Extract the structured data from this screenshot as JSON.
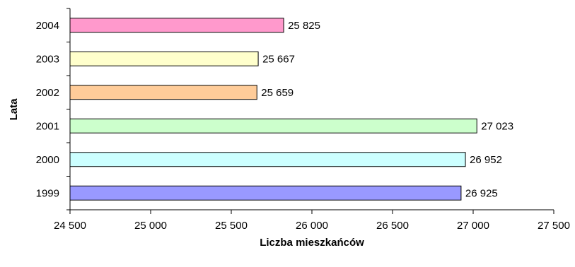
{
  "chart_data": {
    "type": "bar",
    "orientation": "horizontal",
    "title": "",
    "xlabel": "Liczba mieszkańców",
    "ylabel": "Lata",
    "xlim": [
      24500,
      27500
    ],
    "xticks": [
      24500,
      25000,
      25500,
      26000,
      26500,
      27000,
      27500
    ],
    "xtick_labels": [
      "24 500",
      "25 000",
      "25 500",
      "26 000",
      "26 500",
      "27 000",
      "27 500"
    ],
    "categories": [
      "1999",
      "2000",
      "2001",
      "2002",
      "2003",
      "2004"
    ],
    "values": [
      26925,
      26952,
      27023,
      25659,
      25667,
      25825
    ],
    "value_labels": [
      "26 925",
      "26 952",
      "27 023",
      "25 659",
      "25 667",
      "25 825"
    ],
    "colors": [
      "#9999ff",
      "#ccffff",
      "#ccffcc",
      "#ffcc99",
      "#ffffcc",
      "#ff99cc"
    ],
    "grid": false,
    "legend": "none"
  }
}
